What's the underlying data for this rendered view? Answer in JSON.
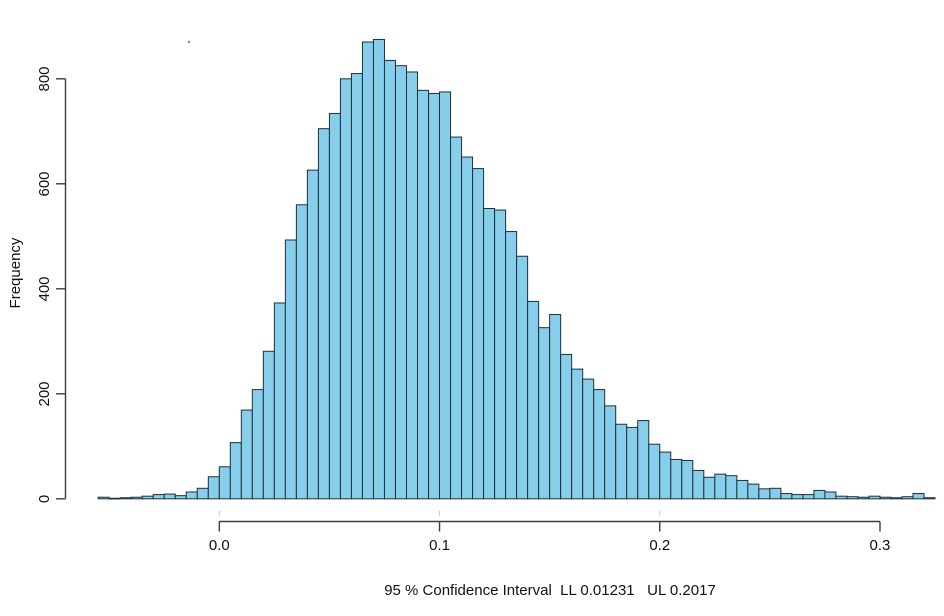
{
  "chart_data": {
    "type": "histogram",
    "title": "",
    "ylabel": "Frequency",
    "xlabel": "95 % Confidence Interval  LL 0.01231   UL 0.2017",
    "confidence_interval": {
      "level_label": "95 %",
      "ll_label": "LL 0.01231",
      "ul_label": "UL 0.2017"
    },
    "bin_start": -0.055,
    "bin_width": 0.005,
    "counts": [
      3,
      1,
      2,
      3,
      5,
      8,
      9,
      6,
      13,
      20,
      42,
      61,
      107,
      169,
      208,
      281,
      373,
      493,
      560,
      626,
      705,
      734,
      800,
      810,
      870,
      875,
      835,
      825,
      813,
      778,
      772,
      775,
      689,
      651,
      629,
      553,
      550,
      509,
      462,
      376,
      326,
      351,
      275,
      247,
      228,
      208,
      177,
      142,
      136,
      149,
      104,
      89,
      75,
      73,
      54,
      41,
      47,
      44,
      35,
      28,
      19,
      20,
      10,
      8,
      8,
      16,
      13,
      5,
      4,
      3,
      5,
      3,
      2,
      4,
      10,
      2
    ],
    "x_ticks": {
      "values": [
        0,
        0.1,
        0.2,
        0.3
      ],
      "labels": [
        "0.0",
        "0.1",
        "0.2",
        "0.3"
      ]
    },
    "y_ticks": {
      "values": [
        0,
        200,
        400,
        600,
        800
      ],
      "labels": [
        "0",
        "200",
        "400",
        "600",
        "800"
      ]
    },
    "xlim": [
      -0.06,
      0.33
    ],
    "ylim": [
      0,
      880
    ],
    "grid": "off",
    "legend": "none",
    "bar_fill": "#87CEEB",
    "bar_stroke": "#1f3038",
    "axis_color": "#3d3d3d",
    "text_color": "#111111"
  }
}
